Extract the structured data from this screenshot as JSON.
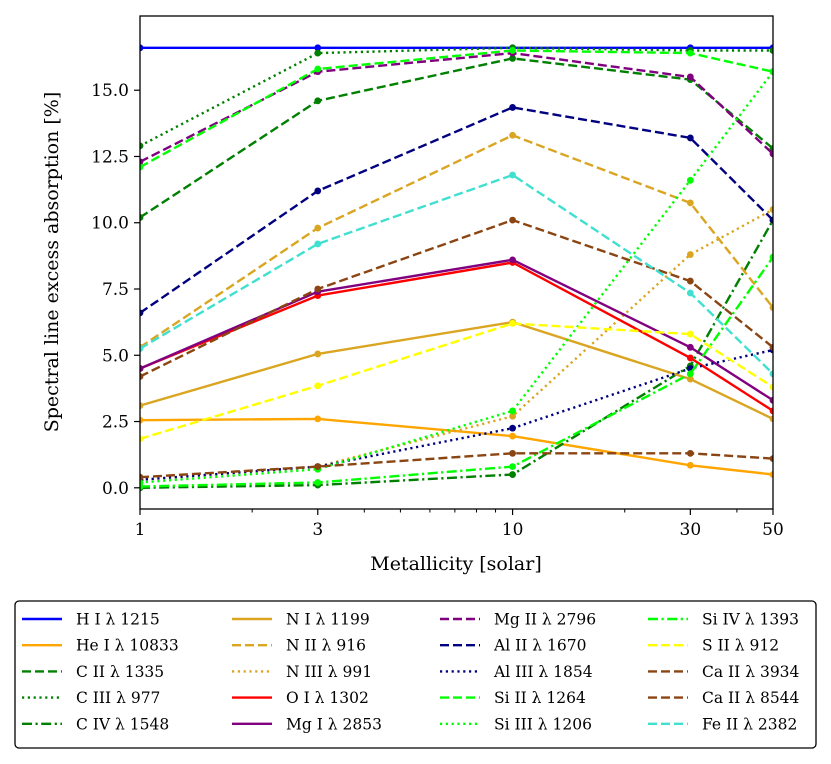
{
  "chart_data": {
    "type": "line",
    "x": [
      1,
      3,
      10,
      30,
      50
    ],
    "x_tick_labels": [
      "1",
      "3",
      "10",
      "30",
      "50"
    ],
    "xlabel": "Metallicity [solar]",
    "ylabel": "Spectral line excess absorption [%]",
    "xscale": "log",
    "xlim": [
      1,
      50
    ],
    "ylim": [
      -0.8,
      17.8
    ],
    "y_ticks": [
      0.0,
      2.5,
      5.0,
      7.5,
      10.0,
      12.5,
      15.0
    ],
    "y_tick_labels": [
      "0.0",
      "2.5",
      "5.0",
      "7.5",
      "10.0",
      "12.5",
      "15.0"
    ],
    "grid": false,
    "legend_position": "bottom",
    "legend_columns": 4,
    "series": [
      {
        "name": "H I λ 1215",
        "color": "#0000ff",
        "dash": "solid",
        "values": [
          16.6,
          16.6,
          16.6,
          16.6,
          16.6
        ]
      },
      {
        "name": "He I λ 10833",
        "color": "#ffa500",
        "dash": "solid",
        "values": [
          2.55,
          2.6,
          1.95,
          0.85,
          0.5
        ]
      },
      {
        "name": "C II λ 1335",
        "color": "#008000",
        "dash": "dashed",
        "values": [
          10.2,
          14.6,
          16.2,
          15.4,
          12.8
        ]
      },
      {
        "name": "C III λ 977",
        "color": "#008000",
        "dash": "dotted",
        "values": [
          12.9,
          16.4,
          16.6,
          16.5,
          16.5
        ]
      },
      {
        "name": "C IV λ 1548",
        "color": "#008000",
        "dash": "dashdot",
        "values": [
          0.0,
          0.1,
          0.5,
          4.6,
          10.1
        ]
      },
      {
        "name": "N I λ 1199",
        "color": "#daa520",
        "dash": "solid",
        "values": [
          3.1,
          5.05,
          6.25,
          4.1,
          2.6
        ]
      },
      {
        "name": "N II λ 916",
        "color": "#daa520",
        "dash": "dashed",
        "values": [
          5.3,
          9.8,
          13.3,
          10.75,
          6.8
        ]
      },
      {
        "name": "N III λ 991",
        "color": "#daa520",
        "dash": "dotted",
        "values": [
          0.3,
          0.8,
          2.7,
          8.8,
          10.5
        ]
      },
      {
        "name": "O I λ 1302",
        "color": "#ff0000",
        "dash": "solid",
        "values": [
          4.5,
          7.25,
          8.5,
          4.9,
          2.9
        ]
      },
      {
        "name": "Mg I λ 2853",
        "color": "#800080",
        "dash": "solid",
        "values": [
          4.5,
          7.4,
          8.6,
          5.3,
          3.3
        ]
      },
      {
        "name": "Mg II λ 2796",
        "color": "#800080",
        "dash": "dashed",
        "values": [
          12.3,
          15.7,
          16.4,
          15.5,
          12.6
        ]
      },
      {
        "name": "Al II λ 1670",
        "color": "#000080",
        "dash": "dashed",
        "values": [
          6.6,
          11.2,
          14.35,
          13.2,
          10.1
        ]
      },
      {
        "name": "Al III λ 1854",
        "color": "#000080",
        "dash": "dotted",
        "values": [
          0.3,
          0.8,
          2.25,
          4.5,
          5.2
        ]
      },
      {
        "name": "Si II λ 1264",
        "color": "#00ff00",
        "dash": "dashed",
        "values": [
          12.1,
          15.8,
          16.5,
          16.4,
          15.7
        ]
      },
      {
        "name": "Si III λ 1206",
        "color": "#00ff00",
        "dash": "dotted",
        "values": [
          0.2,
          0.7,
          2.9,
          11.6,
          15.7
        ]
      },
      {
        "name": "Si IV λ 1393",
        "color": "#00ff00",
        "dash": "dashdot",
        "values": [
          0.05,
          0.2,
          0.8,
          4.3,
          8.7
        ]
      },
      {
        "name": "S II λ 912",
        "color": "#ffff00",
        "dash": "dashed",
        "values": [
          1.85,
          3.85,
          6.2,
          5.8,
          3.8
        ]
      },
      {
        "name": "Ca II λ 3934",
        "color": "#8b4513",
        "dash": "dashed",
        "values": [
          4.2,
          7.5,
          10.1,
          7.8,
          5.3
        ]
      },
      {
        "name": "Ca II λ 8544",
        "color": "#8b4513",
        "dash": "dashed",
        "values": [
          0.4,
          0.8,
          1.3,
          1.3,
          1.1
        ]
      },
      {
        "name": "Fe II λ 2382",
        "color": "#40e0d0",
        "dash": "dashed",
        "values": [
          5.25,
          9.2,
          11.8,
          7.35,
          4.3
        ]
      }
    ]
  }
}
